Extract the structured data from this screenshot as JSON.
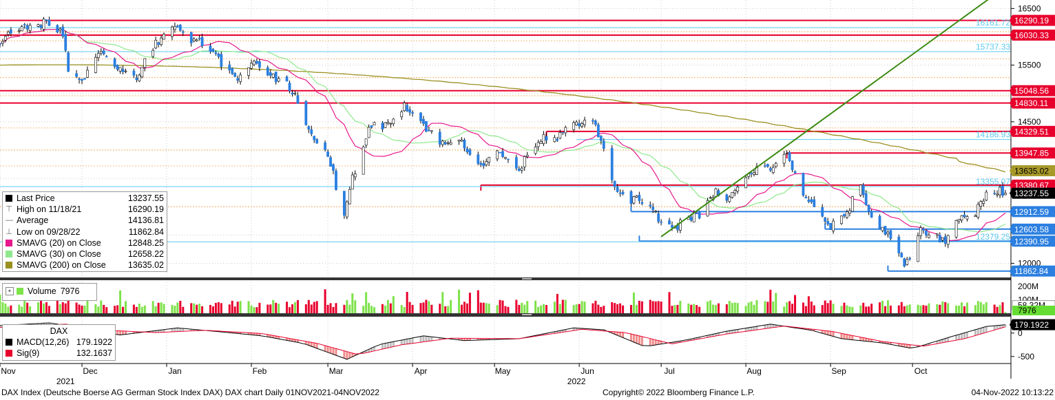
{
  "chart_data": {
    "type": "candlestick",
    "title": "DAX",
    "price_axis": {
      "ylim": [
        11750,
        16650
      ],
      "ticks": [
        {
          "value": 16500,
          "label": "16500"
        },
        {
          "value": 15500,
          "label": "15500"
        },
        {
          "value": 14500,
          "label": "14500"
        },
        {
          "value": 12000,
          "label": "12000"
        }
      ],
      "gridlines": [
        16500,
        16000,
        15500,
        15000,
        14500,
        14000,
        13500,
        13000,
        12500,
        12000
      ]
    },
    "time_axis": {
      "months": [
        {
          "label": "Nov",
          "date": "2021-11-01"
        },
        {
          "label": "Dec",
          "date": "2021-12-01"
        },
        {
          "label": "Jan",
          "date": "2022-01-01"
        },
        {
          "label": "Feb",
          "date": "2022-02-01"
        },
        {
          "label": "Mar",
          "date": "2022-03-01"
        },
        {
          "label": "Apr",
          "date": "2022-04-01"
        },
        {
          "label": "May",
          "date": "2022-05-01"
        },
        {
          "label": "Jun",
          "date": "2022-06-01"
        },
        {
          "label": "Jul",
          "date": "2022-07-01"
        },
        {
          "label": "Aug",
          "date": "2022-08-01"
        },
        {
          "label": "Sep",
          "date": "2022-09-01"
        },
        {
          "label": "Oct",
          "date": "2022-10-01"
        }
      ],
      "years": [
        {
          "label": "2021",
          "date": "2021-11-25"
        },
        {
          "label": "2022",
          "date": "2022-05-31"
        }
      ],
      "start": "2021-11-01",
      "end": "2022-11-04"
    },
    "price_path": [
      [
        "2021-11-01",
        15950
      ],
      [
        "2021-11-05",
        16050
      ],
      [
        "2021-11-10",
        16150
      ],
      [
        "2021-11-18",
        16250
      ],
      [
        "2021-11-24",
        16050
      ],
      [
        "2021-11-26",
        15350
      ],
      [
        "2021-12-01",
        15250
      ],
      [
        "2021-12-08",
        15700
      ],
      [
        "2021-12-14",
        15450
      ],
      [
        "2021-12-21",
        15300
      ],
      [
        "2021-12-28",
        15900
      ],
      [
        "2022-01-05",
        16200
      ],
      [
        "2022-01-10",
        15900
      ],
      [
        "2022-01-14",
        15900
      ],
      [
        "2022-01-21",
        15550
      ],
      [
        "2022-01-27",
        15200
      ],
      [
        "2022-02-02",
        15600
      ],
      [
        "2022-02-08",
        15300
      ],
      [
        "2022-02-14",
        15200
      ],
      [
        "2022-02-18",
        14900
      ],
      [
        "2022-02-24",
        14100
      ],
      [
        "2022-03-01",
        13950
      ],
      [
        "2022-03-07",
        12800
      ],
      [
        "2022-03-10",
        13500
      ],
      [
        "2022-03-16",
        14400
      ],
      [
        "2022-03-22",
        14450
      ],
      [
        "2022-03-29",
        14800
      ],
      [
        "2022-04-05",
        14450
      ],
      [
        "2022-04-12",
        14100
      ],
      [
        "2022-04-19",
        14150
      ],
      [
        "2022-04-26",
        13750
      ],
      [
        "2022-05-03",
        13950
      ],
      [
        "2022-05-10",
        13650
      ],
      [
        "2022-05-17",
        14200
      ],
      [
        "2022-05-24",
        14250
      ],
      [
        "2022-05-30",
        14550
      ],
      [
        "2022-06-03",
        14450
      ],
      [
        "2022-06-07",
        14450
      ],
      [
        "2022-06-13",
        13450
      ],
      [
        "2022-06-17",
        13150
      ],
      [
        "2022-06-24",
        13100
      ],
      [
        "2022-06-29",
        12850
      ],
      [
        "2022-07-05",
        12600
      ],
      [
        "2022-07-11",
        12800
      ],
      [
        "2022-07-15",
        12850
      ],
      [
        "2022-07-21",
        13250
      ],
      [
        "2022-07-26",
        13150
      ],
      [
        "2022-08-01",
        13500
      ],
      [
        "2022-08-05",
        13650
      ],
      [
        "2022-08-10",
        13700
      ],
      [
        "2022-08-16",
        13900
      ],
      [
        "2022-08-22",
        13250
      ],
      [
        "2022-08-26",
        12950
      ],
      [
        "2022-09-01",
        12650
      ],
      [
        "2022-09-06",
        12800
      ],
      [
        "2022-09-12",
        13400
      ],
      [
        "2022-09-16",
        12750
      ],
      [
        "2022-09-22",
        12550
      ],
      [
        "2022-09-28",
        11975
      ],
      [
        "2022-09-30",
        12100
      ],
      [
        "2022-10-04",
        12650
      ],
      [
        "2022-10-07",
        12500
      ],
      [
        "2022-10-13",
        12400
      ],
      [
        "2022-10-18",
        12750
      ],
      [
        "2022-10-24",
        12900
      ],
      [
        "2022-10-28",
        13250
      ],
      [
        "2022-11-01",
        13300
      ],
      [
        "2022-11-04",
        13237.55
      ]
    ],
    "overlays": {
      "horizontal_levels": [
        {
          "value": 16290.19,
          "label": "16290.19",
          "color": "#e8002d",
          "kind": "box",
          "from": "2021-11-01"
        },
        {
          "value": 16161.72,
          "label": "16161.72",
          "color": "#5bc8ef",
          "kind": "text",
          "from": "2021-11-01"
        },
        {
          "value": 16030.33,
          "label": "16030.33",
          "color": "#e8002d",
          "kind": "box",
          "from": "2021-11-01"
        },
        {
          "value": 15737.33,
          "label": "15737.33",
          "color": "#5bc8ef",
          "kind": "text",
          "from": "2021-11-01"
        },
        {
          "value": 15048.56,
          "label": "15048.56",
          "color": "#e8002d",
          "kind": "box",
          "from": "2021-11-01"
        },
        {
          "value": 14830.11,
          "label": "14830.11",
          "color": "#e8002d",
          "kind": "box",
          "from": "2021-11-01"
        },
        {
          "value": 14329.51,
          "label": "14329.51",
          "color": "#e8002d",
          "kind": "box",
          "from": "2022-05-20"
        },
        {
          "value": 14186.93,
          "label": "14186.93",
          "color": "#5bc8ef",
          "kind": "text",
          "from": "2022-05-31"
        },
        {
          "value": 13947.85,
          "label": "13947.85",
          "color": "#e8002d",
          "kind": "box",
          "from": "2022-08-16"
        },
        {
          "value": 13635.02,
          "label": "13635.02",
          "color": "#b5a22e",
          "kind": "boxdark",
          "from": null
        },
        {
          "value": 13380.67,
          "label": "13380.67",
          "color": "#e8002d",
          "kind": "box",
          "from": "2022-04-26"
        },
        {
          "value": 13355.07,
          "label": "13355.07",
          "color": "#5bc8ef",
          "kind": "text",
          "from": null
        },
        {
          "value": 13237.55,
          "label": "13237.55",
          "color": "#000000",
          "kind": "boxlast",
          "from": null
        },
        {
          "value": 12912.59,
          "label": "12912.59",
          "color": "#2b7fe0",
          "kind": "box",
          "from": "2022-06-20"
        },
        {
          "value": 12603.58,
          "label": "12603.58",
          "color": "#2b7fe0",
          "kind": "box",
          "from": "2022-08-30"
        },
        {
          "value": 12390.95,
          "label": "12390.95",
          "color": "#2b7fe0",
          "kind": "box",
          "from": "2022-06-23"
        },
        {
          "value": 12379.25,
          "label": "12379.25",
          "color": "#5bc8ef",
          "kind": "text",
          "from": null
        },
        {
          "value": 11862.84,
          "label": "11862.84",
          "color": "#2b7fe0",
          "kind": "box",
          "from": "2022-09-22"
        }
      ],
      "trendline": {
        "color": "#3a8a10",
        "from": [
          "2022-07-01",
          12470
        ],
        "to": [
          "2022-11-04",
          16880
        ]
      }
    },
    "legend": [
      {
        "name": "Last Price",
        "value": "13237.55",
        "color": "#000000",
        "marker": "square"
      },
      {
        "name": "High on 11/18/21",
        "value": "16290.19",
        "color": "#666666",
        "marker": "high"
      },
      {
        "name": "Average",
        "value": "14136.81",
        "color": "#666666",
        "marker": "avg"
      },
      {
        "name": "Low on 09/28/22",
        "value": "11862.84",
        "color": "#666666",
        "marker": "low"
      },
      {
        "name": "SMAVG (20)  on Close",
        "value": "12848.25",
        "color": "#e8188c",
        "marker": "square"
      },
      {
        "name": "SMAVG (30)  on Close",
        "value": "12658.22",
        "color": "#8ee88c",
        "marker": "square"
      },
      {
        "name": "SMAVG (200)  on Close",
        "value": "13635.02",
        "color": "#9a9020",
        "marker": "square"
      }
    ],
    "volume_panel": {
      "legend_name": "Volume",
      "legend_value": "7976",
      "ticks": [
        {
          "value": 200,
          "label": "200M"
        },
        {
          "value": 100,
          "label": "100M"
        }
      ],
      "marker_labels": [
        {
          "label": "58.32M",
          "color": "#ffffff",
          "text_color": "#000000"
        },
        {
          "label": "7976",
          "color": "#66dd33",
          "text_color": "#000000"
        }
      ],
      "ylim": [
        0,
        230
      ]
    },
    "macd_panel": {
      "title": "DAX",
      "legend": [
        {
          "name": "MACD(12,26)",
          "value": "179.1922",
          "color": "#000000"
        },
        {
          "name": "Sig(9)",
          "value": "132.1637",
          "color": "#e8002d"
        }
      ],
      "ticks": [
        {
          "value": 0,
          "label": "0"
        },
        {
          "value": -500,
          "label": "-500"
        }
      ],
      "ylim": [
        -650,
        320
      ],
      "last_label": "179.1922",
      "macd_path": [
        [
          "2021-11-01",
          160
        ],
        [
          "2021-11-20",
          220
        ],
        [
          "2021-12-01",
          60
        ],
        [
          "2021-12-15",
          -40
        ],
        [
          "2022-01-05",
          110
        ],
        [
          "2022-01-20",
          30
        ],
        [
          "2022-02-05",
          -60
        ],
        [
          "2022-02-20",
          -220
        ],
        [
          "2022-03-08",
          -560
        ],
        [
          "2022-03-20",
          -240
        ],
        [
          "2022-04-05",
          -60
        ],
        [
          "2022-04-20",
          -160
        ],
        [
          "2022-05-10",
          -120
        ],
        [
          "2022-05-30",
          110
        ],
        [
          "2022-06-10",
          70
        ],
        [
          "2022-06-25",
          -290
        ],
        [
          "2022-07-10",
          -150
        ],
        [
          "2022-07-25",
          40
        ],
        [
          "2022-08-10",
          190
        ],
        [
          "2022-08-25",
          60
        ],
        [
          "2022-09-05",
          -120
        ],
        [
          "2022-09-20",
          -210
        ],
        [
          "2022-10-01",
          -330
        ],
        [
          "2022-10-15",
          -80
        ],
        [
          "2022-10-28",
          140
        ],
        [
          "2022-11-04",
          179
        ]
      ],
      "signal_path": [
        [
          "2021-11-01",
          120
        ],
        [
          "2021-11-25",
          190
        ],
        [
          "2021-12-10",
          60
        ],
        [
          "2021-12-28",
          10
        ],
        [
          "2022-01-15",
          60
        ],
        [
          "2022-02-05",
          -10
        ],
        [
          "2022-02-25",
          -220
        ],
        [
          "2022-03-12",
          -460
        ],
        [
          "2022-03-28",
          -250
        ],
        [
          "2022-04-15",
          -110
        ],
        [
          "2022-05-10",
          -120
        ],
        [
          "2022-06-02",
          80
        ],
        [
          "2022-06-18",
          10
        ],
        [
          "2022-07-05",
          -230
        ],
        [
          "2022-07-25",
          -20
        ],
        [
          "2022-08-15",
          150
        ],
        [
          "2022-09-01",
          40
        ],
        [
          "2022-09-20",
          -180
        ],
        [
          "2022-10-05",
          -280
        ],
        [
          "2022-10-20",
          -120
        ],
        [
          "2022-11-04",
          132
        ]
      ]
    }
  },
  "footer": {
    "description": "DAX Index (Deutsche Boerse AG German Stock Index DAX) DAX chart  Daily 01NOV2021-04NOV2022",
    "copyright": "Copyright© 2022 Bloomberg Finance L.P.",
    "timestamp": "04-Nov-2022 10:13:22"
  },
  "colors": {
    "up": "#ffffff",
    "down": "#2b7fe0",
    "volume_up": "#7ee24a",
    "volume_down": "#e8002d",
    "grid": "#c9c9c9",
    "divider": "#333333"
  }
}
